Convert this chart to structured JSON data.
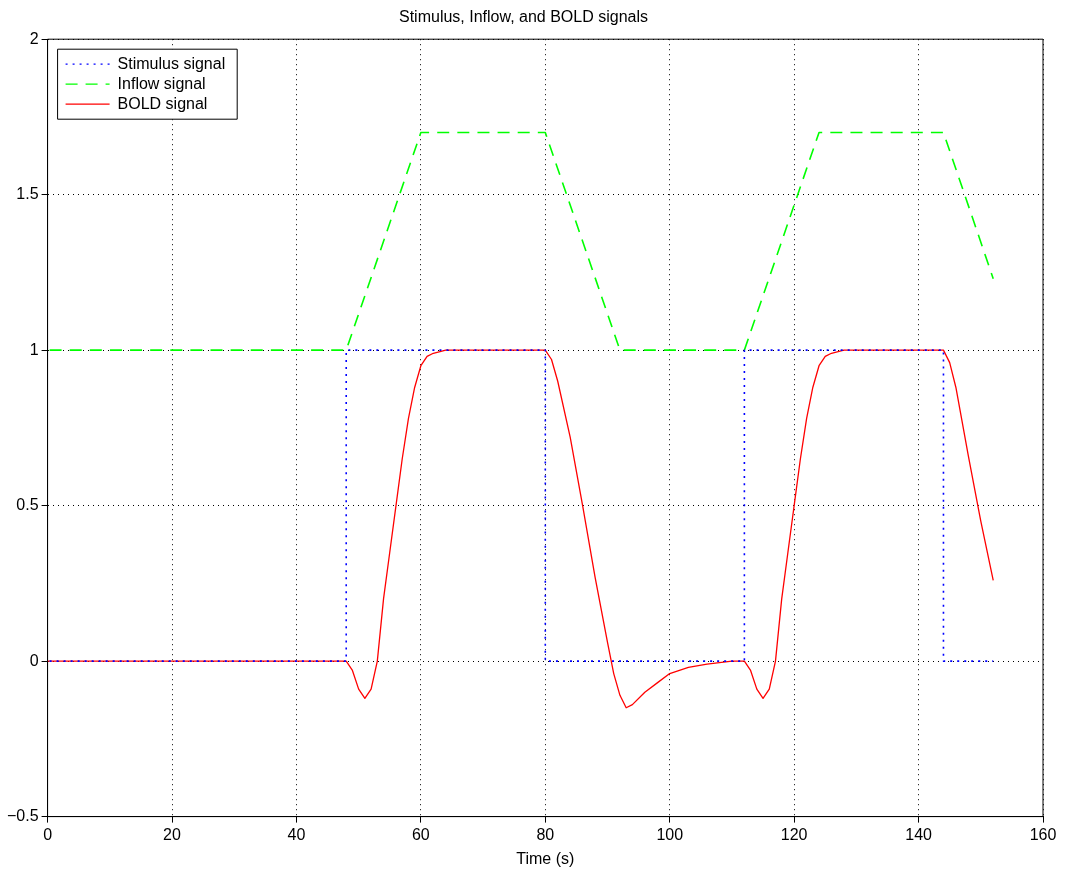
{
  "chart_data": {
    "type": "line",
    "title": "Stimulus, Inflow, and BOLD signals",
    "xlabel": "Time (s)",
    "xlim": [
      0,
      160
    ],
    "xticks": [
      0,
      20,
      40,
      60,
      80,
      100,
      120,
      140,
      160
    ],
    "ylim": [
      -0.5,
      2
    ],
    "yticks": [
      {
        "value": -0.5,
        "label": "−0.5"
      },
      0,
      0.5,
      1,
      1.5,
      2
    ],
    "grid": true,
    "legend": "top left",
    "series": [
      {
        "name": "Stimulus signal",
        "type": "step",
        "color": "#0000ff",
        "line_style": "dotted",
        "x": [
          0,
          48,
          80,
          112,
          144,
          152
        ],
        "values": [
          0,
          1,
          0,
          1,
          0,
          0
        ]
      },
      {
        "name": "Inflow signal",
        "type": "line",
        "color": "#00ff00",
        "line_style": "dashed",
        "x": [
          0,
          48,
          60,
          80,
          92,
          112,
          124,
          144,
          152
        ],
        "values": [
          1,
          1,
          1.7,
          1.7,
          1,
          1,
          1.7,
          1.7,
          1.23
        ]
      },
      {
        "name": "BOLD signal",
        "type": "line",
        "color": "#ff0000",
        "line_style": "solid",
        "x": [
          0,
          48,
          49,
          50,
          51,
          52,
          53,
          54,
          55,
          56,
          57,
          58,
          59,
          60,
          61,
          62,
          64,
          80,
          81,
          82,
          84,
          86,
          88,
          90,
          91,
          92,
          93,
          94,
          96,
          98,
          100,
          103,
          106,
          110,
          112,
          113,
          114,
          115,
          116,
          117,
          118,
          119,
          120,
          121,
          122,
          123,
          124,
          125,
          126,
          128,
          144,
          145,
          146,
          148,
          150,
          152
        ],
        "values": [
          0,
          0,
          -0.03,
          -0.09,
          -0.12,
          -0.09,
          0,
          0.2,
          0.35,
          0.5,
          0.65,
          0.78,
          0.88,
          0.95,
          0.98,
          0.99,
          1,
          1,
          0.97,
          0.9,
          0.72,
          0.5,
          0.27,
          0.06,
          -0.04,
          -0.11,
          -0.15,
          -0.14,
          -0.1,
          -0.07,
          -0.04,
          -0.02,
          -0.01,
          0,
          0,
          -0.03,
          -0.09,
          -0.12,
          -0.09,
          0,
          0.2,
          0.35,
          0.5,
          0.65,
          0.78,
          0.88,
          0.95,
          0.98,
          0.99,
          1,
          1,
          0.96,
          0.88,
          0.66,
          0.45,
          0.26
        ]
      }
    ]
  }
}
